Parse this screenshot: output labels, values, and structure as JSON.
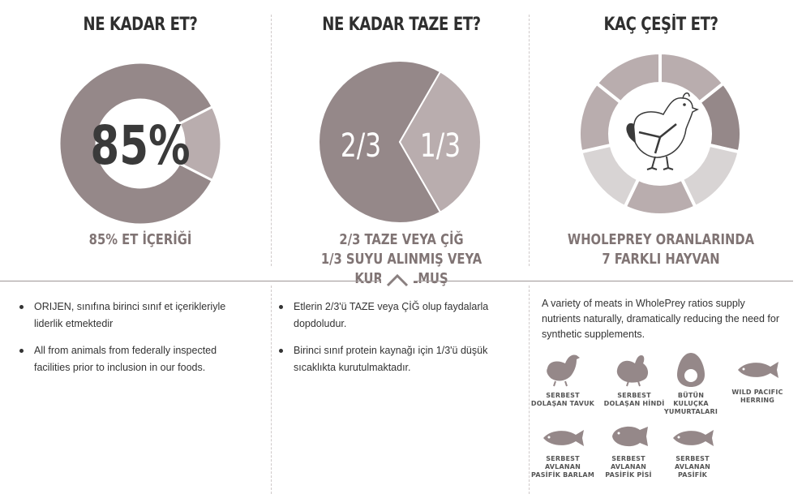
{
  "columns": [
    {
      "title": "NE KADAR ET?",
      "center_label": "85%",
      "subtitle": [
        "85% ET İÇERİĞİ"
      ],
      "bullets": [
        "ORIJEN, sınıfına birinci sınıf et içerikleriyle liderlik etmektedir",
        "All from animals from federally inspected facilities prior to inclusion in our foods."
      ]
    },
    {
      "title": "NE KADAR TAZE ET?",
      "slice_labels": [
        "2/3",
        "1/3"
      ],
      "subtitle": [
        "2/3 TAZE VEYA ÇİĞ",
        "1/3 SUYU ALINMIŞ VEYA KURUTULMUŞ"
      ],
      "bullets": [
        "Etlerin 2/3'ü TAZE veya ÇİĞ olup faydalarla dopdoludur.",
        "Birinci sınıf protein kaynağı için 1/3'ü düşük sıcaklıkta kurutulmaktadır."
      ]
    },
    {
      "title": "KAÇ ÇEŞİT ET?",
      "subtitle": [
        "WHOLEPREY ORANLARINDA",
        "7 FARKLI HAYVAN"
      ],
      "paragraph": "A variety of meats in WholePrey ratios supply nutrients naturally, dramatically reducing the need for synthetic supplements.",
      "animals": [
        {
          "icon": "chicken-icon",
          "label": [
            "SERBEST",
            "DOLAŞAN TAVUK"
          ]
        },
        {
          "icon": "turkey-icon",
          "label": [
            "SERBEST",
            "DOLAŞAN HİNDİ"
          ]
        },
        {
          "icon": "egg-icon",
          "label": [
            "BÜTÜN",
            "KULUÇKA",
            "YUMURTALARI"
          ]
        },
        {
          "icon": "herring-icon",
          "label": [
            "WILD PACIFIC",
            "HERRING"
          ]
        },
        {
          "icon": "fish-icon",
          "label": [
            "SERBEST",
            "AVLANAN",
            "PASİFİK BARLAM"
          ]
        },
        {
          "icon": "flounder-icon",
          "label": [
            "SERBEST",
            "AVLANAN",
            "PASİFİK PİSİ"
          ]
        },
        {
          "icon": "fish-icon",
          "label": [
            "SERBEST",
            "AVLANAN",
            "PASİFİK"
          ]
        }
      ]
    }
  ],
  "colors": {
    "dark": "#958889",
    "mid": "#b9adae",
    "light": "#d8d4d4",
    "text_dark": "#2f2f2f",
    "text_sub": "#807474"
  },
  "chart_data": [
    {
      "type": "pie",
      "title": "NE KADAR ET?",
      "labels": [
        "85%",
        ""
      ],
      "values": [
        85,
        15
      ]
    },
    {
      "type": "pie",
      "title": "NE KADAR TAZE ET?",
      "labels": [
        "2/3",
        "1/3"
      ],
      "values": [
        66.67,
        33.33
      ]
    },
    {
      "type": "pie",
      "title": "KAÇ ÇEŞİT ET?",
      "labels": [
        "",
        "",
        "",
        "",
        "",
        "",
        ""
      ],
      "values": [
        1,
        1,
        1,
        1,
        1,
        1,
        1
      ]
    }
  ]
}
